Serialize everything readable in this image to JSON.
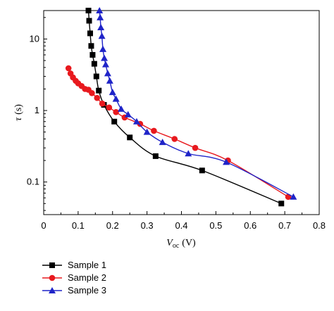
{
  "chart_data": {
    "type": "line",
    "xlabel_symbol": "V",
    "xlabel_subscript": "oc",
    "xlabel_unit": "(V)",
    "ylabel_symbol": "τ",
    "ylabel_unit": "(s)",
    "xlim": [
      0,
      0.8
    ],
    "ylim": [
      0.035,
      25
    ],
    "yscale": "log",
    "x_ticks": [
      "0",
      "0.1",
      "0.2",
      "0.3",
      "0.4",
      "0.5",
      "0.6",
      "0.7",
      "0.8"
    ],
    "x_tick_values": [
      0,
      0.1,
      0.2,
      0.3,
      0.4,
      0.5,
      0.6,
      0.7,
      0.8
    ],
    "y_ticks": [
      "0.1",
      "1",
      "10"
    ],
    "y_tick_values": [
      0.1,
      1,
      10
    ],
    "grid": false,
    "legend_position": "below plot, left",
    "series": [
      {
        "name": "Sample 1",
        "color": "#000000",
        "marker": "square",
        "x": [
          0.13,
          0.132,
          0.135,
          0.138,
          0.142,
          0.147,
          0.153,
          0.16,
          0.175,
          0.205,
          0.25,
          0.325,
          0.46,
          0.69
        ],
        "y": [
          25,
          18,
          12,
          8,
          6,
          4.5,
          3,
          1.9,
          1.2,
          0.7,
          0.42,
          0.23,
          0.145,
          0.05
        ]
      },
      {
        "name": "Sample 2",
        "color": "#e8191e",
        "marker": "circle",
        "x": [
          0.072,
          0.078,
          0.085,
          0.093,
          0.1,
          0.11,
          0.12,
          0.13,
          0.14,
          0.155,
          0.17,
          0.19,
          0.21,
          0.235,
          0.28,
          0.32,
          0.38,
          0.44,
          0.535,
          0.71
        ],
        "y": [
          3.9,
          3.3,
          2.9,
          2.6,
          2.4,
          2.2,
          2.0,
          1.95,
          1.75,
          1.5,
          1.25,
          1.1,
          0.95,
          0.8,
          0.65,
          0.52,
          0.4,
          0.3,
          0.2,
          0.062
        ]
      },
      {
        "name": "Sample 3",
        "color": "#1f24c8",
        "marker": "triangle",
        "x": [
          0.162,
          0.164,
          0.166,
          0.169,
          0.172,
          0.176,
          0.18,
          0.186,
          0.192,
          0.2,
          0.21,
          0.225,
          0.245,
          0.27,
          0.3,
          0.345,
          0.42,
          0.53,
          0.725
        ],
        "y": [
          25,
          20,
          14.5,
          11,
          7.2,
          5.4,
          4.4,
          3.3,
          2.6,
          1.8,
          1.45,
          1.05,
          0.88,
          0.7,
          0.5,
          0.36,
          0.25,
          0.19,
          0.062
        ]
      }
    ]
  }
}
